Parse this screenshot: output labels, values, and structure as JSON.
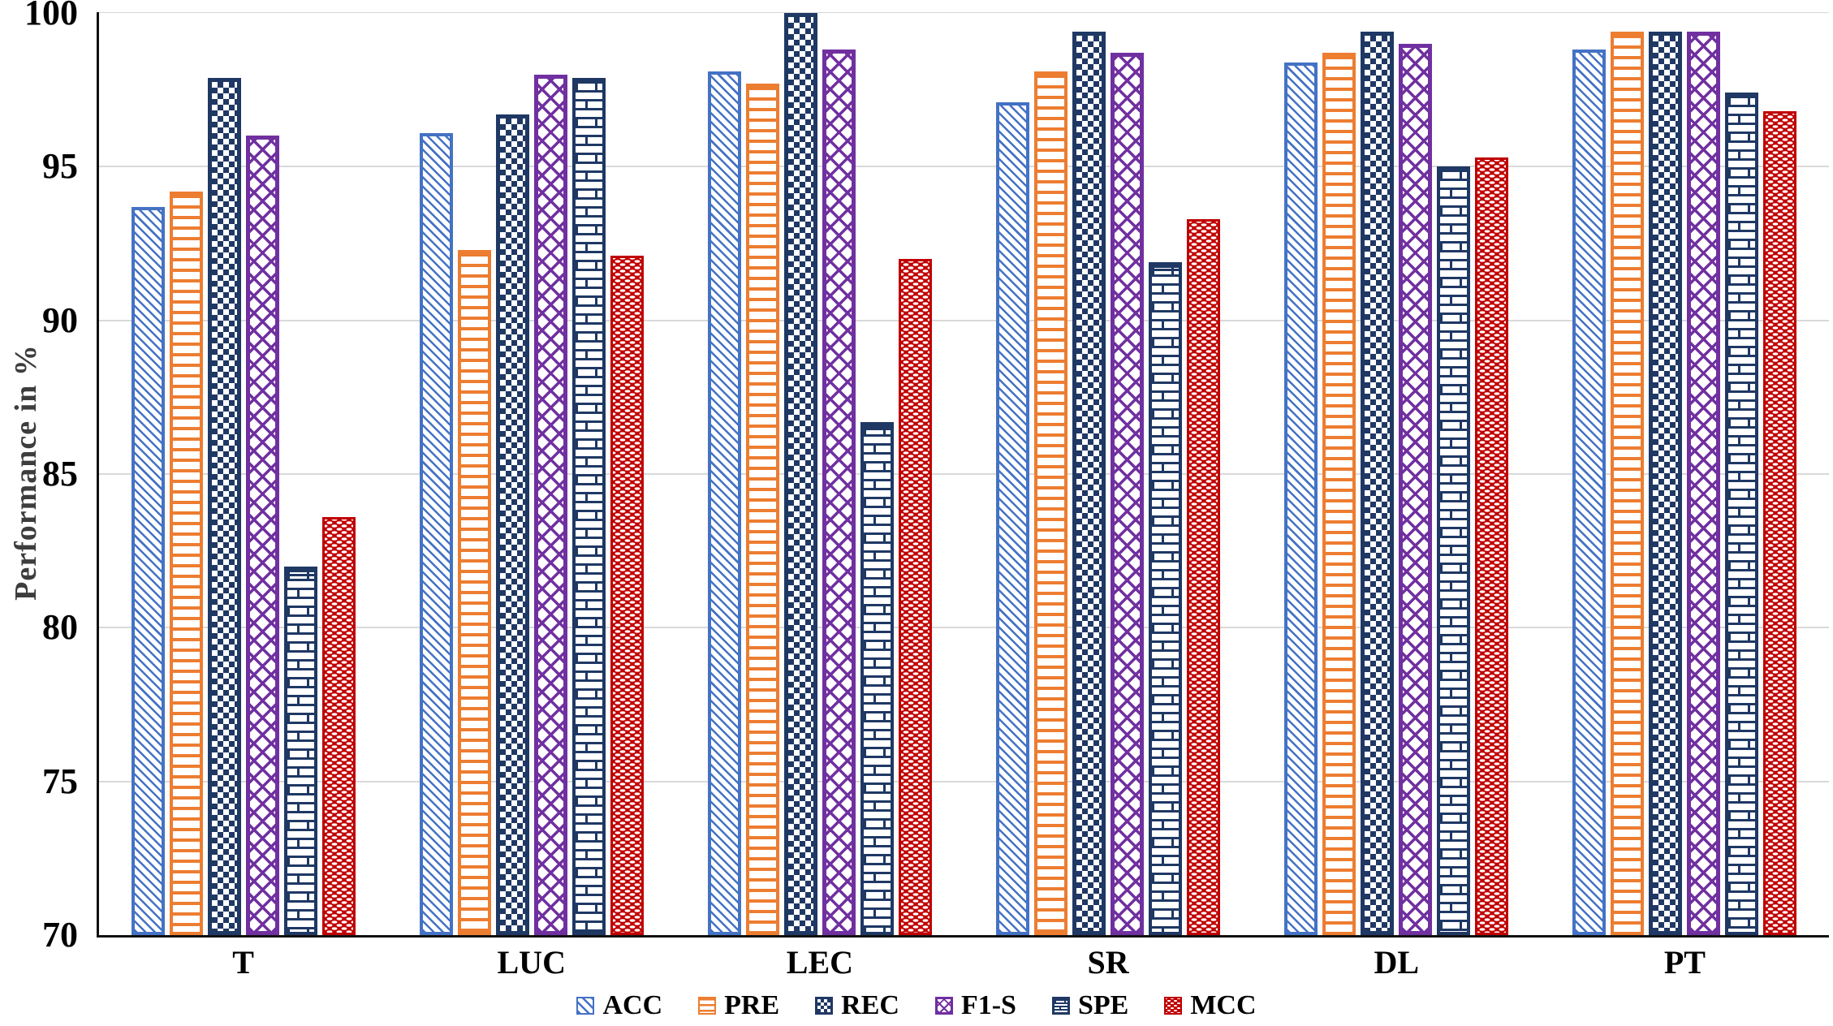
{
  "chart_data": {
    "type": "bar",
    "title": "",
    "xlabel": "",
    "ylabel": "Performance in %",
    "categories": [
      "T",
      "LUC",
      "LEC",
      "SR",
      "DL",
      "PT"
    ],
    "series": [
      {
        "name": "ACC",
        "color": "#4472C4",
        "pattern": "diagonal-hatch",
        "values": [
          93.7,
          96.1,
          98.1,
          97.1,
          98.4,
          98.8
        ]
      },
      {
        "name": "PRE",
        "color": "#ED7D31",
        "pattern": "horizontal-lines",
        "values": [
          94.2,
          92.3,
          97.7,
          98.1,
          98.7,
          99.4
        ]
      },
      {
        "name": "REC",
        "color": "#1F3864",
        "pattern": "checkerboard",
        "values": [
          97.9,
          96.7,
          100.0,
          99.4,
          99.4,
          99.4
        ]
      },
      {
        "name": "F1-S",
        "color": "#7030A0",
        "pattern": "diagonal-weave",
        "values": [
          96.0,
          98.0,
          98.8,
          98.7,
          99.0,
          99.4
        ]
      },
      {
        "name": "SPE",
        "color": "#1F3864",
        "pattern": "brick",
        "values": [
          82.0,
          97.9,
          86.7,
          91.9,
          95.0,
          97.4
        ]
      },
      {
        "name": "MCC",
        "color": "#C00000",
        "pattern": "white-dashes-on-red",
        "values": [
          83.6,
          92.1,
          92.0,
          93.3,
          95.3,
          96.8
        ]
      }
    ],
    "ylim": [
      70,
      100
    ],
    "y_ticks": [
      100,
      95,
      90,
      85,
      80,
      75,
      70
    ],
    "grid": "horizontal-only",
    "gridline_color": "#d9d9d9",
    "legend_position": "bottom-center",
    "background_color": "#ffffff"
  }
}
